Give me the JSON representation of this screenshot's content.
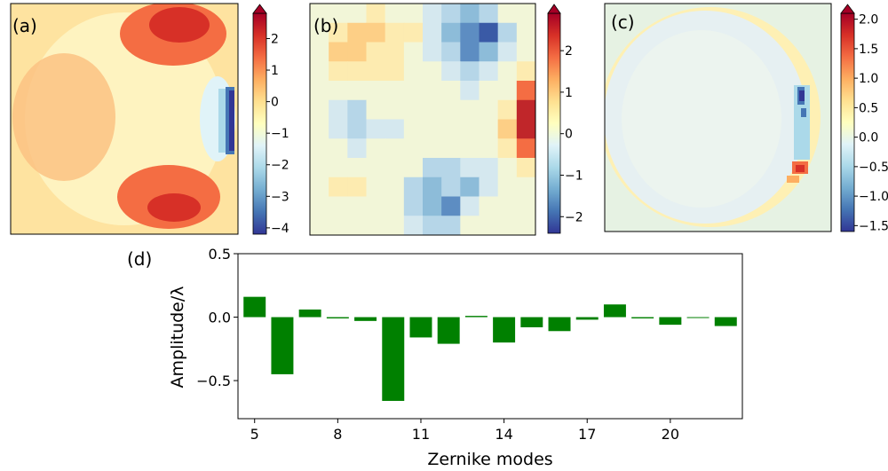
{
  "colors": {
    "bar": "#008000",
    "colormap": [
      "#313695",
      "#4575b4",
      "#74add1",
      "#abd9e9",
      "#e0f3f8",
      "#ffffbf",
      "#fee090",
      "#fdae61",
      "#f46d43",
      "#d73027",
      "#a50026"
    ]
  },
  "panels": [
    {
      "label": "(a)",
      "type": "heatmap",
      "colorbar_ticks": [
        "2",
        "1",
        "0",
        "−1",
        "−2",
        "−3",
        "−4"
      ],
      "colorbar_values": [
        2,
        1,
        0,
        -1,
        -2,
        -3,
        -4
      ],
      "vmin": -4.2,
      "vmax": 2.8
    },
    {
      "label": "(b)",
      "type": "heatmap",
      "colorbar_ticks": [
        "2",
        "1",
        "0",
        "−1",
        "−2"
      ],
      "colorbar_values": [
        2,
        1,
        0,
        -1,
        -2
      ],
      "vmin": -2.4,
      "vmax": 2.9
    },
    {
      "label": "(c)",
      "type": "heatmap",
      "colorbar_ticks": [
        "2.0",
        "1.5",
        "1.0",
        "0.5",
        "0.0",
        "−0.5",
        "−1.0",
        "−1.5"
      ],
      "colorbar_values": [
        2.0,
        1.5,
        1.0,
        0.5,
        0.0,
        -0.5,
        -1.0,
        -1.5
      ],
      "vmin": -1.6,
      "vmax": 2.1
    }
  ],
  "chart_data": {
    "type": "bar",
    "label": "(d)",
    "xlabel": "Zernike modes",
    "ylabel": "Amplitude/λ",
    "x": [
      5,
      6,
      7,
      8,
      9,
      10,
      11,
      12,
      13,
      14,
      15,
      16,
      17,
      18,
      19,
      20,
      21,
      22
    ],
    "values": [
      0.16,
      -0.45,
      0.06,
      -0.01,
      -0.03,
      -0.66,
      -0.16,
      -0.21,
      0.01,
      -0.2,
      -0.08,
      -0.11,
      -0.02,
      0.1,
      -0.01,
      -0.06,
      0.0,
      -0.07
    ],
    "xticks": [
      5,
      8,
      11,
      14,
      17,
      20
    ],
    "xtick_labels": [
      "5",
      "8",
      "11",
      "14",
      "17",
      "20"
    ],
    "yticks": [
      0.5,
      0.0,
      -0.5
    ],
    "ytick_labels": [
      "0.5",
      "0.0",
      "−0.5"
    ],
    "xlim": [
      4.4,
      22.6
    ],
    "ylim": [
      -0.8,
      0.5
    ]
  }
}
